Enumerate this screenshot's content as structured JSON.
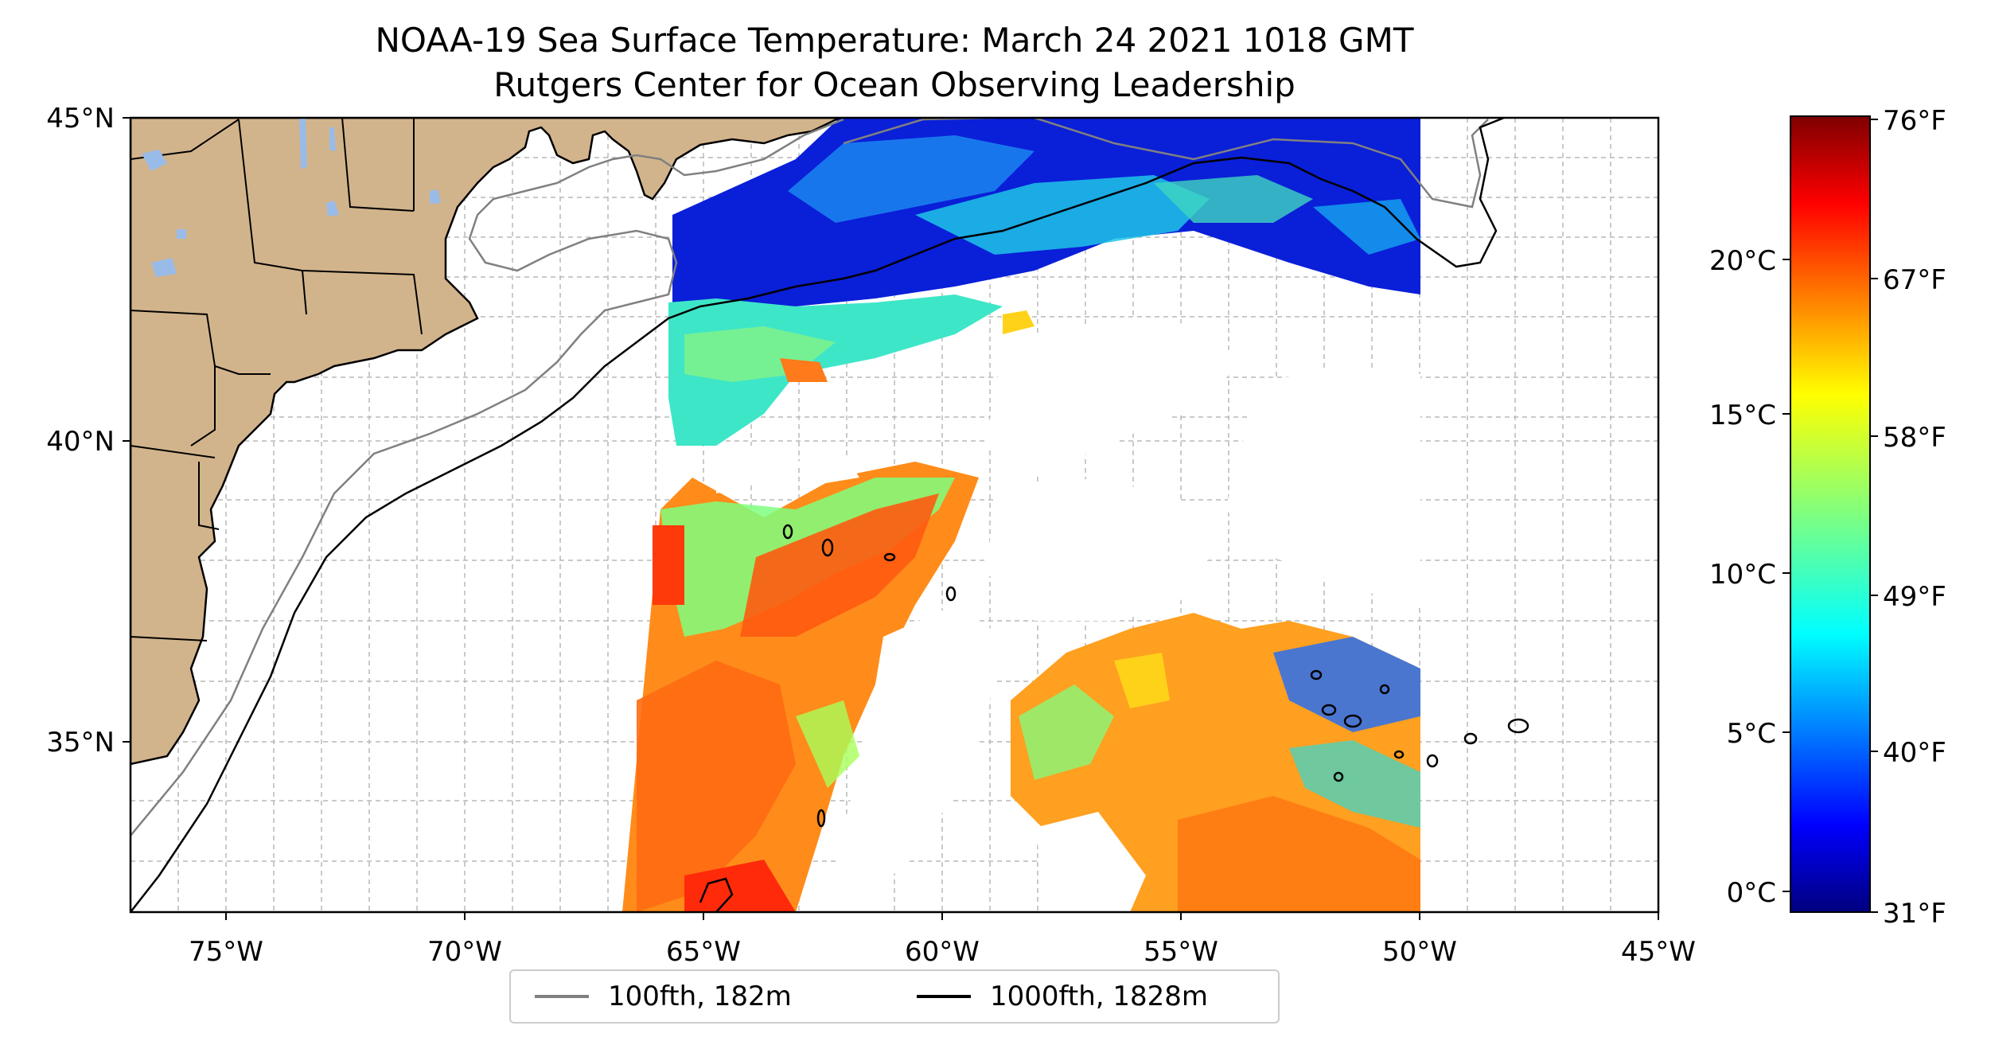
{
  "title": {
    "line1": "NOAA-19 Sea Surface Temperature: March 24 2021 1018 GMT",
    "line2": "Rutgers Center for Ocean Observing Leadership"
  },
  "map": {
    "lon_range": [
      -77,
      -45
    ],
    "lat_range": [
      32.2,
      45
    ],
    "lon_ticks": [
      "75°W",
      "70°W",
      "65°W",
      "60°W",
      "55°W",
      "50°W",
      "45°W"
    ],
    "lat_ticks": [
      "45°N",
      "40°N",
      "35°N"
    ],
    "gridlines": true,
    "land_color": "#d2b48c",
    "lake_color": "#99bbe8",
    "no_data_color": "#ffffff"
  },
  "legend": {
    "placement": "bottom-center",
    "items": [
      {
        "label": "100fth, 182m",
        "color": "#808080"
      },
      {
        "label": "1000fth, 1828m",
        "color": "#000000"
      }
    ]
  },
  "colorbar": {
    "colormap": "jet",
    "range_c": [
      -0.5,
      24.5
    ],
    "celsius_ticks": [
      "0°C",
      "5°C",
      "10°C",
      "15°C",
      "20°C"
    ],
    "fahrenheit_ticks": [
      "31°F",
      "40°F",
      "49°F",
      "58°F",
      "67°F",
      "76°F"
    ]
  }
}
